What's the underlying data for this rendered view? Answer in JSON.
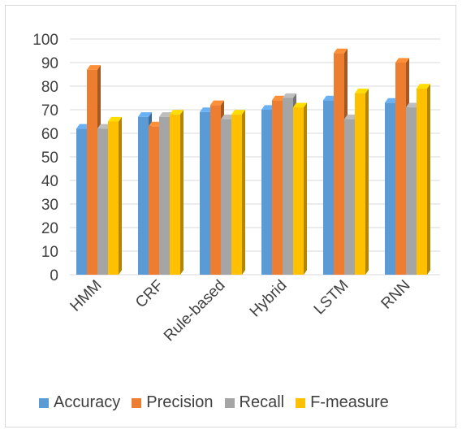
{
  "chart_data": {
    "type": "bar",
    "style": "3d-clustered-column",
    "categories": [
      "HMM",
      "CRF",
      "Rule-based",
      "Hybrid",
      "LSTM",
      "RNN"
    ],
    "series": [
      {
        "name": "Accuracy",
        "color": "#5b9bd5",
        "values": [
          62,
          67,
          69,
          70,
          74,
          73
        ]
      },
      {
        "name": "Precision",
        "color": "#ed7d31",
        "values": [
          87,
          63,
          72,
          74,
          94,
          90
        ]
      },
      {
        "name": "Recall",
        "color": "#a5a5a5",
        "values": [
          62,
          67,
          66,
          75,
          66,
          71
        ]
      },
      {
        "name": "F-measure",
        "color": "#ffc000",
        "values": [
          65,
          68,
          68,
          71,
          77,
          79
        ]
      }
    ],
    "yticks": [
      "0",
      "10",
      "20",
      "30",
      "40",
      "50",
      "60",
      "70",
      "80",
      "90",
      "100"
    ],
    "ylim": [
      0,
      100
    ],
    "grid": true,
    "legend_position": "bottom"
  }
}
